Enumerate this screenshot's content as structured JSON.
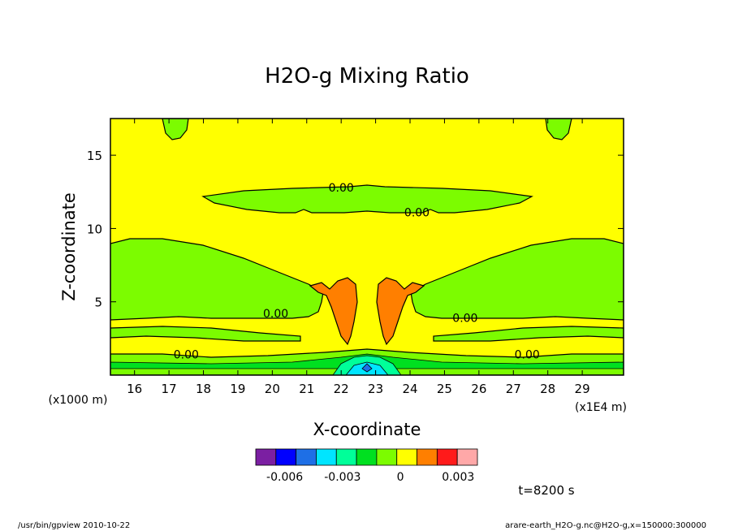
{
  "chart_data": {
    "type": "heatmap",
    "title": "H2O-g Mixing Ratio",
    "xlabel": "X-coordinate",
    "ylabel": "Z-coordinate",
    "x_unit_left": "(x1000 m)",
    "x_unit_right": "(x1E4 m)",
    "xlim": [
      15.3,
      30.2
    ],
    "ylim": [
      0,
      17.5
    ],
    "x_ticks": [
      16,
      17,
      18,
      19,
      20,
      21,
      22,
      23,
      24,
      25,
      26,
      27,
      28,
      29
    ],
    "y_ticks": [
      5,
      10,
      15
    ],
    "contour_labels": [
      {
        "text": "0.00",
        "x": 22.0,
        "y": 12.8
      },
      {
        "text": "0.00",
        "x": 24.2,
        "y": 11.1
      },
      {
        "text": "0.00",
        "x": 20.1,
        "y": 4.2
      },
      {
        "text": "0.00",
        "x": 25.6,
        "y": 3.9
      },
      {
        "text": "0.00",
        "x": 17.5,
        "y": 1.4
      },
      {
        "text": "0.00",
        "x": 27.4,
        "y": 1.4
      }
    ],
    "colorbar": {
      "colors": [
        "#7b1fa2",
        "#0000ff",
        "#1e6fe6",
        "#00e5ff",
        "#00ff99",
        "#00e020",
        "#7cfc00",
        "#ffff00",
        "#ff7f00",
        "#ff1a1a",
        "#ffa8a8"
      ],
      "tick_labels": [
        "-0.006",
        "-0.003",
        "0",
        "0.003"
      ],
      "tick_values": [
        -0.006,
        -0.003,
        0,
        0.003
      ],
      "range": [
        -0.0075,
        0.004
      ]
    },
    "time_label": "t=8200 s"
  },
  "footer": {
    "left": "/usr/bin/gpview   2010-10-22",
    "right": "arare-earth_H2O-g.nc@H2O-g,x=150000:300000"
  }
}
